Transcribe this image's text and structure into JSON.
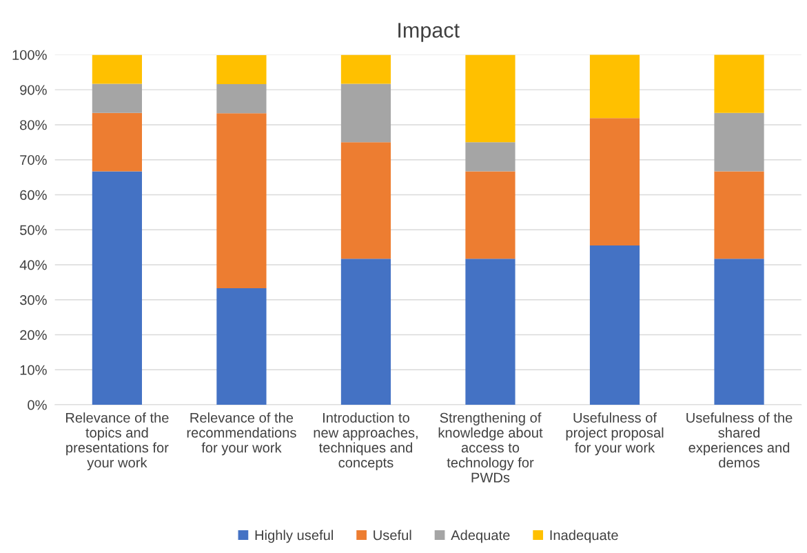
{
  "chart_data": {
    "type": "bar",
    "title": "Impact",
    "stacked": true,
    "categories": [
      "Relevance of the\ntopics and\npresentations for\nyour work",
      "Relevance of the\nrecommendations\nfor your work",
      "Introduction to\nnew approaches,\ntechniques and\nconcepts",
      "Strengthening of\nknowledge about\naccess to\ntechnology for\nPWDs",
      "Usefulness of\nproject proposal\nfor your work",
      "Usefulness of the\nshared\nexperiences and\ndemos"
    ],
    "series": [
      {
        "name": "Highly useful",
        "color": "#4472c4",
        "values": [
          66.7,
          33.3,
          41.7,
          41.7,
          45.5,
          41.7
        ]
      },
      {
        "name": "Useful",
        "color": "#ed7d31",
        "values": [
          16.7,
          50.0,
          33.3,
          25.0,
          36.4,
          25.0
        ]
      },
      {
        "name": "Adequate",
        "color": "#a5a5a5",
        "values": [
          8.3,
          8.3,
          16.7,
          8.3,
          0,
          16.7
        ]
      },
      {
        "name": "Inadequate",
        "color": "#ffc000",
        "values": [
          8.3,
          8.3,
          8.3,
          25.0,
          18.2,
          16.7
        ]
      }
    ],
    "ylim": [
      0,
      100
    ],
    "yticks": [
      {
        "value": 0,
        "label": "0%"
      },
      {
        "value": 10,
        "label": "10%"
      },
      {
        "value": 20,
        "label": "20%"
      },
      {
        "value": 30,
        "label": "30%"
      },
      {
        "value": 40,
        "label": "40%"
      },
      {
        "value": 50,
        "label": "50%"
      },
      {
        "value": 60,
        "label": "60%"
      },
      {
        "value": 70,
        "label": "70%"
      },
      {
        "value": 80,
        "label": "80%"
      },
      {
        "value": 90,
        "label": "90%"
      },
      {
        "value": 100,
        "label": "100%"
      }
    ],
    "grid": "y",
    "legend": "bottom"
  }
}
